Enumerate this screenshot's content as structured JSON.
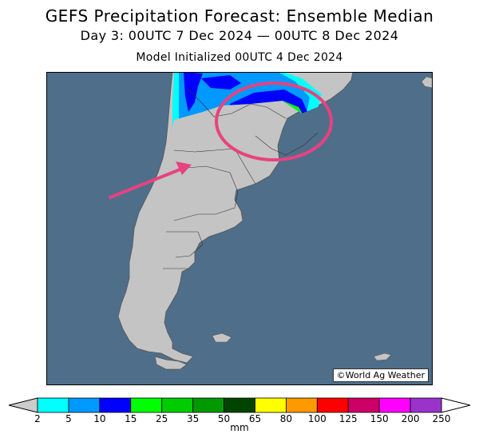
{
  "title": {
    "line1": "GEFS Precipitation Forecast: Ensemble Median",
    "line2": "Day 3: 00UTC 7 Dec 2024 — 00UTC 8 Dec 2024",
    "line3": "Model Initialized 00UTC 4 Dec 2024"
  },
  "credit": "©World Ag Weather",
  "colorbar": {
    "unit": "mm",
    "ticks": [
      "2",
      "5",
      "10",
      "15",
      "25",
      "35",
      "50",
      "65",
      "80",
      "100",
      "125",
      "150",
      "200",
      "250"
    ],
    "colors": [
      "#00ffff",
      "#0099ff",
      "#0000ff",
      "#00ff00",
      "#00cc00",
      "#009900",
      "#004400",
      "#ffff00",
      "#ff9900",
      "#ff0000",
      "#cc0066",
      "#ff00ff",
      "#9933cc"
    ],
    "under_color": "#cccccc",
    "over_color": "#ffffff"
  },
  "colors": {
    "ocean": "#4f6e8a",
    "land": "#c4c4c4",
    "highlight": "#e8427f"
  }
}
